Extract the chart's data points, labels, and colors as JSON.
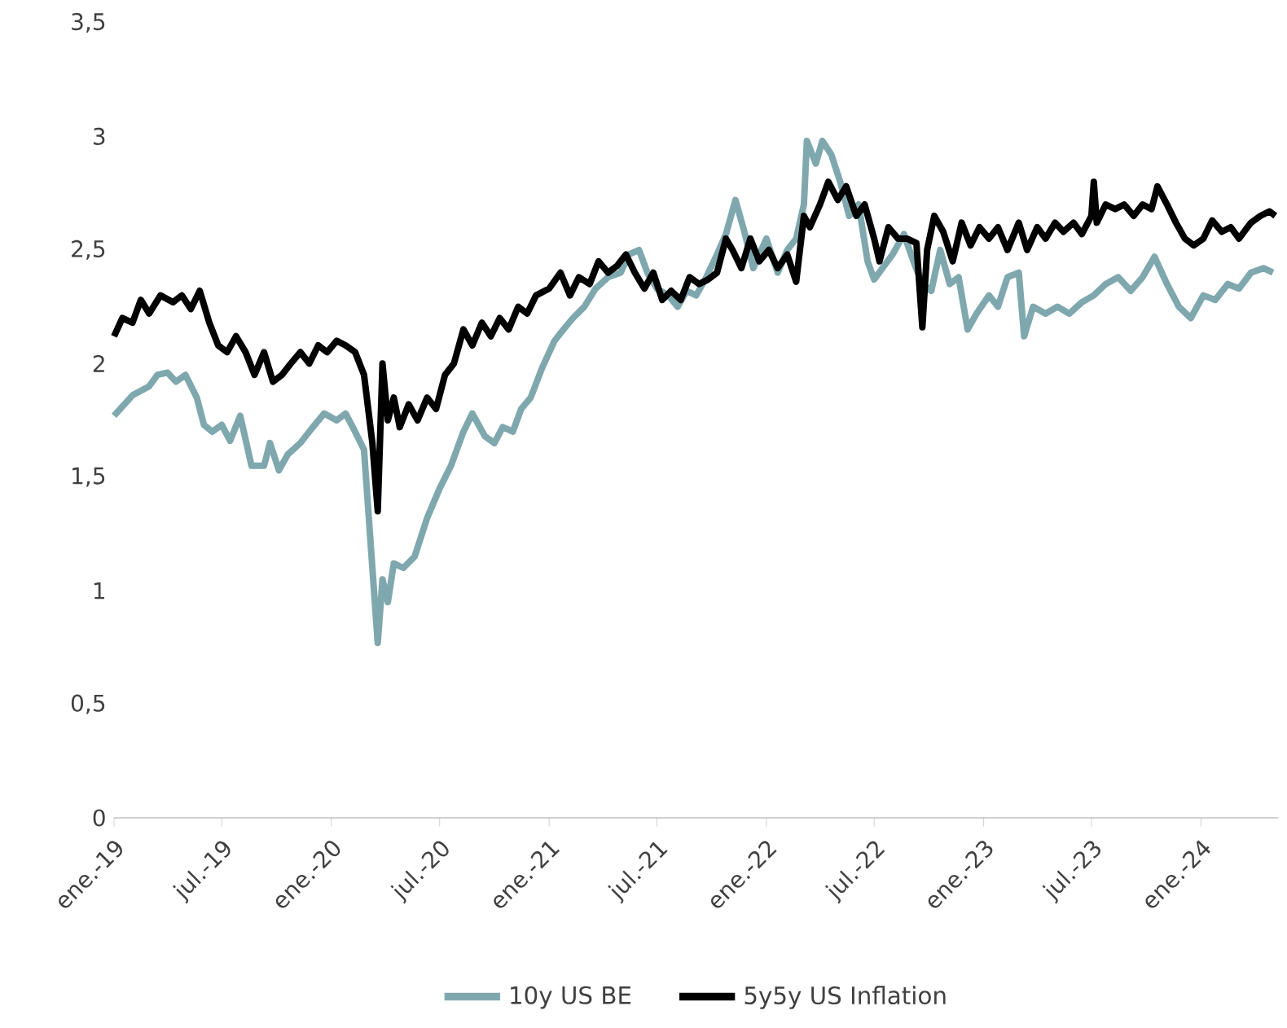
{
  "chart_data": {
    "type": "line",
    "legend": "bottom",
    "line_style": "solid",
    "grid": false,
    "xlim": [
      "2019-01-01",
      "2024-05-10"
    ],
    "xticks": [
      {
        "value": "2019-01-01",
        "label": "ene.-19"
      },
      {
        "value": "2019-07-01",
        "label": "jul.-19"
      },
      {
        "value": "2020-01-01",
        "label": "ene.-20"
      },
      {
        "value": "2020-07-01",
        "label": "jul.-20"
      },
      {
        "value": "2021-01-01",
        "label": "ene.-21"
      },
      {
        "value": "2021-07-01",
        "label": "jul.-21"
      },
      {
        "value": "2022-01-01",
        "label": "ene.-22"
      },
      {
        "value": "2022-07-01",
        "label": "jul.-22"
      },
      {
        "value": "2023-01-01",
        "label": "ene.-23"
      },
      {
        "value": "2023-07-01",
        "label": "jul.-23"
      },
      {
        "value": "2024-01-01",
        "label": "ene.-24"
      }
    ],
    "ylim": [
      0,
      3.5
    ],
    "yticks": [
      {
        "value": 0,
        "label": "0"
      },
      {
        "value": 0.5,
        "label": "0,5"
      },
      {
        "value": 1,
        "label": "1"
      },
      {
        "value": 1.5,
        "label": "1,5"
      },
      {
        "value": 2,
        "label": "2"
      },
      {
        "value": 2.5,
        "label": "2,5"
      },
      {
        "value": 3,
        "label": "3"
      },
      {
        "value": 3.5,
        "label": "3,5"
      }
    ],
    "series": [
      {
        "name": "10y US BE",
        "color": "#7fa8ae",
        "x": [
          "2019-01-01",
          "2019-02-01",
          "2019-03-01",
          "2019-03-15",
          "2019-04-01",
          "2019-04-15",
          "2019-05-01",
          "2019-05-20",
          "2019-06-01",
          "2019-06-15",
          "2019-07-01",
          "2019-07-15",
          "2019-08-01",
          "2019-08-20",
          "2019-09-10",
          "2019-09-20",
          "2019-10-05",
          "2019-10-20",
          "2019-11-10",
          "2019-12-01",
          "2019-12-20",
          "2020-01-10",
          "2020-01-25",
          "2020-02-10",
          "2020-02-25",
          "2020-03-10",
          "2020-03-19",
          "2020-03-27",
          "2020-04-05",
          "2020-04-15",
          "2020-05-01",
          "2020-05-20",
          "2020-06-10",
          "2020-07-01",
          "2020-07-20",
          "2020-08-10",
          "2020-08-25",
          "2020-09-15",
          "2020-10-01",
          "2020-10-15",
          "2020-11-01",
          "2020-11-15",
          "2020-12-01",
          "2020-12-20",
          "2021-01-10",
          "2021-01-25",
          "2021-02-10",
          "2021-03-01",
          "2021-03-20",
          "2021-04-10",
          "2021-05-01",
          "2021-05-15",
          "2021-06-01",
          "2021-06-15",
          "2021-07-01",
          "2021-07-20",
          "2021-08-05",
          "2021-08-20",
          "2021-09-05",
          "2021-09-20",
          "2021-10-10",
          "2021-10-25",
          "2021-11-10",
          "2021-11-25",
          "2021-12-10",
          "2022-01-01",
          "2022-01-20",
          "2022-02-05",
          "2022-02-20",
          "2022-03-05",
          "2022-03-10",
          "2022-03-25",
          "2022-04-05",
          "2022-04-20",
          "2022-05-05",
          "2022-05-20",
          "2022-06-05",
          "2022-06-20",
          "2022-07-01",
          "2022-07-15",
          "2022-08-01",
          "2022-08-20",
          "2022-09-05",
          "2022-09-20",
          "2022-10-05",
          "2022-10-20",
          "2022-11-05",
          "2022-11-20",
          "2022-12-05",
          "2022-12-20",
          "2023-01-10",
          "2023-01-25",
          "2023-02-10",
          "2023-03-01",
          "2023-03-10",
          "2023-03-25",
          "2023-04-15",
          "2023-05-05",
          "2023-05-25",
          "2023-06-15",
          "2023-07-05",
          "2023-07-25",
          "2023-08-15",
          "2023-09-05",
          "2023-09-25",
          "2023-10-15",
          "2023-11-05",
          "2023-11-25",
          "2023-12-15",
          "2024-01-05",
          "2024-01-25",
          "2024-02-15",
          "2024-03-05",
          "2024-03-25",
          "2024-04-15",
          "2024-05-01"
        ],
        "values": [
          1.77,
          1.86,
          1.9,
          1.95,
          1.96,
          1.92,
          1.95,
          1.85,
          1.73,
          1.7,
          1.73,
          1.66,
          1.77,
          1.55,
          1.55,
          1.65,
          1.53,
          1.6,
          1.65,
          1.72,
          1.78,
          1.75,
          1.78,
          1.7,
          1.62,
          1.1,
          0.77,
          1.05,
          0.95,
          1.12,
          1.1,
          1.15,
          1.32,
          1.45,
          1.55,
          1.7,
          1.78,
          1.68,
          1.65,
          1.72,
          1.7,
          1.8,
          1.85,
          1.98,
          2.1,
          2.15,
          2.2,
          2.25,
          2.33,
          2.38,
          2.4,
          2.48,
          2.5,
          2.4,
          2.33,
          2.3,
          2.25,
          2.32,
          2.3,
          2.37,
          2.48,
          2.57,
          2.72,
          2.58,
          2.42,
          2.55,
          2.4,
          2.5,
          2.55,
          2.7,
          2.98,
          2.88,
          2.98,
          2.92,
          2.8,
          2.65,
          2.7,
          2.45,
          2.37,
          2.42,
          2.48,
          2.57,
          2.45,
          2.35,
          2.32,
          2.5,
          2.35,
          2.38,
          2.15,
          2.22,
          2.3,
          2.25,
          2.38,
          2.4,
          2.12,
          2.25,
          2.22,
          2.25,
          2.22,
          2.27,
          2.3,
          2.35,
          2.38,
          2.32,
          2.38,
          2.47,
          2.35,
          2.25,
          2.2,
          2.3,
          2.28,
          2.35,
          2.33,
          2.4,
          2.42,
          2.4
        ]
      },
      {
        "name": "5y5y US Inflation",
        "color": "#000000",
        "x": [
          "2019-01-01",
          "2019-01-15",
          "2019-02-01",
          "2019-02-15",
          "2019-03-01",
          "2019-03-20",
          "2019-04-10",
          "2019-04-25",
          "2019-05-10",
          "2019-05-25",
          "2019-06-10",
          "2019-06-25",
          "2019-07-10",
          "2019-07-25",
          "2019-08-10",
          "2019-08-25",
          "2019-09-10",
          "2019-09-25",
          "2019-10-10",
          "2019-10-25",
          "2019-11-10",
          "2019-11-25",
          "2019-12-10",
          "2019-12-25",
          "2020-01-10",
          "2020-01-25",
          "2020-02-10",
          "2020-02-25",
          "2020-03-10",
          "2020-03-19",
          "2020-03-27",
          "2020-04-05",
          "2020-04-15",
          "2020-04-25",
          "2020-05-10",
          "2020-05-25",
          "2020-06-10",
          "2020-06-25",
          "2020-07-10",
          "2020-07-25",
          "2020-08-10",
          "2020-08-25",
          "2020-09-10",
          "2020-09-25",
          "2020-10-10",
          "2020-10-25",
          "2020-11-10",
          "2020-11-25",
          "2020-12-10",
          "2021-01-01",
          "2021-01-20",
          "2021-02-05",
          "2021-02-20",
          "2021-03-10",
          "2021-03-25",
          "2021-04-10",
          "2021-04-25",
          "2021-05-10",
          "2021-05-25",
          "2021-06-10",
          "2021-06-25",
          "2021-07-10",
          "2021-07-25",
          "2021-08-10",
          "2021-08-25",
          "2021-09-10",
          "2021-09-25",
          "2021-10-10",
          "2021-10-25",
          "2021-11-05",
          "2021-11-20",
          "2021-12-05",
          "2021-12-20",
          "2022-01-05",
          "2022-01-20",
          "2022-02-05",
          "2022-02-20",
          "2022-03-05",
          "2022-03-15",
          "2022-04-01",
          "2022-04-15",
          "2022-05-01",
          "2022-05-15",
          "2022-06-01",
          "2022-06-15",
          "2022-07-01",
          "2022-07-10",
          "2022-07-25",
          "2022-08-10",
          "2022-08-25",
          "2022-09-10",
          "2022-09-20",
          "2022-09-28",
          "2022-10-10",
          "2022-10-25",
          "2022-11-10",
          "2022-11-25",
          "2022-12-10",
          "2022-12-25",
          "2023-01-10",
          "2023-01-25",
          "2023-02-10",
          "2023-03-01",
          "2023-03-15",
          "2023-04-01",
          "2023-04-15",
          "2023-05-01",
          "2023-05-15",
          "2023-06-01",
          "2023-06-15",
          "2023-07-01",
          "2023-07-05",
          "2023-07-10",
          "2023-07-25",
          "2023-08-10",
          "2023-08-25",
          "2023-09-10",
          "2023-09-25",
          "2023-10-10",
          "2023-10-20",
          "2023-11-05",
          "2023-11-20",
          "2023-12-05",
          "2023-12-20",
          "2024-01-05",
          "2024-01-20",
          "2024-02-05",
          "2024-02-20",
          "2024-03-05",
          "2024-03-25",
          "2024-04-10",
          "2024-04-25",
          "2024-05-05"
        ],
        "values": [
          2.12,
          2.2,
          2.18,
          2.28,
          2.22,
          2.3,
          2.27,
          2.3,
          2.24,
          2.32,
          2.18,
          2.08,
          2.05,
          2.12,
          2.05,
          1.95,
          2.05,
          1.92,
          1.95,
          2.0,
          2.05,
          2.0,
          2.08,
          2.05,
          2.1,
          2.08,
          2.05,
          1.95,
          1.65,
          1.35,
          2.0,
          1.75,
          1.85,
          1.72,
          1.82,
          1.75,
          1.85,
          1.8,
          1.95,
          2.0,
          2.15,
          2.08,
          2.18,
          2.12,
          2.2,
          2.15,
          2.25,
          2.22,
          2.3,
          2.33,
          2.4,
          2.3,
          2.38,
          2.35,
          2.45,
          2.4,
          2.43,
          2.48,
          2.4,
          2.33,
          2.4,
          2.28,
          2.32,
          2.28,
          2.38,
          2.35,
          2.37,
          2.4,
          2.55,
          2.5,
          2.42,
          2.55,
          2.45,
          2.5,
          2.42,
          2.48,
          2.36,
          2.65,
          2.6,
          2.7,
          2.8,
          2.72,
          2.78,
          2.65,
          2.7,
          2.55,
          2.45,
          2.6,
          2.55,
          2.55,
          2.53,
          2.16,
          2.5,
          2.65,
          2.58,
          2.45,
          2.62,
          2.52,
          2.6,
          2.55,
          2.6,
          2.5,
          2.62,
          2.5,
          2.6,
          2.55,
          2.62,
          2.58,
          2.62,
          2.57,
          2.65,
          2.8,
          2.62,
          2.7,
          2.68,
          2.7,
          2.65,
          2.7,
          2.68,
          2.78,
          2.7,
          2.62,
          2.55,
          2.52,
          2.55,
          2.63,
          2.58,
          2.6,
          2.55,
          2.62,
          2.65,
          2.67,
          2.65
        ]
      }
    ]
  }
}
